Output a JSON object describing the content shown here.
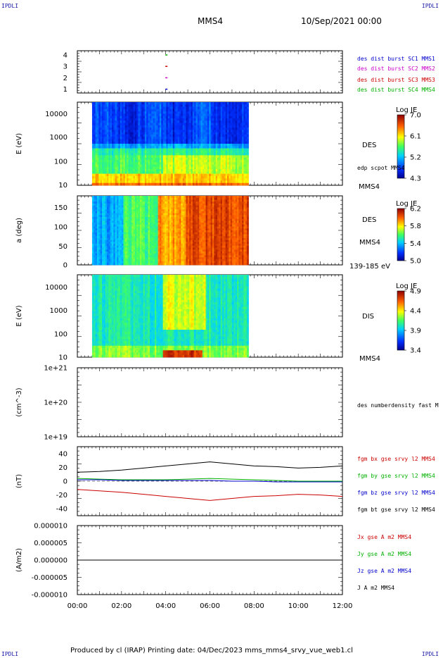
{
  "header": {
    "corner_left_top": "IPDLI",
    "corner_right_top": "IPDLI",
    "corner_left_bottom": "IPDLI",
    "corner_right_bottom": "IPDLI",
    "spacecraft": "MMS4",
    "date_time": "10/Sep/2021 00:00"
  },
  "footer": {
    "text": "Produced by cl (IRAP)   Printing date: 04/Dec/2023   mms_mms4_srvy_vue_web1.cl"
  },
  "colors": {
    "black": "#000000",
    "red": "#cc0000",
    "green": "#00b000",
    "blue": "#0000cc",
    "magenta": "#cc00cc"
  },
  "chart_data": [
    {
      "type": "scatter",
      "panel": "burst",
      "y_ticks": [
        "4",
        "3",
        "2",
        "1"
      ],
      "series": [
        {
          "name": "des dist burst SC1 MMS1",
          "color": "#0000cc",
          "x": "03:59",
          "y": 1
        },
        {
          "name": "des dist burst SC2 MMS2",
          "color": "#cc00cc",
          "x": "03:59",
          "y": 2
        },
        {
          "name": "des dist burst SC3 MMS3",
          "color": "#cc0000",
          "x": "03:59",
          "y": 3
        },
        {
          "name": "des dist burst SC4 MMS4",
          "color": "#00b000",
          "x": "03:59",
          "y": 4
        }
      ]
    },
    {
      "type": "heatmap",
      "panel": "des_energy",
      "ylabel": "E (eV)",
      "y_scale": "log",
      "y_ticks": [
        "10000",
        "1000",
        "100",
        "10"
      ],
      "right_labels": [
        "DES",
        "edp scpot MMS4",
        "MMS4"
      ],
      "colorbar": {
        "title": "Log JE",
        "ticks": [
          "7.0",
          "6.1",
          "5.2",
          "4.3"
        ]
      },
      "data_span": [
        "00:40",
        "07:45"
      ]
    },
    {
      "type": "heatmap",
      "panel": "des_pitch",
      "ylabel": "a (deg)",
      "y_ticks": [
        "150",
        "100",
        "50",
        "0"
      ],
      "right_labels": [
        "DES",
        "MMS4",
        "139-185 eV"
      ],
      "colorbar": {
        "title": "Log JE",
        "ticks": [
          "6.2",
          "5.8",
          "5.4",
          "5.0"
        ]
      },
      "data_span": [
        "00:40",
        "07:45"
      ]
    },
    {
      "type": "heatmap",
      "panel": "dis_energy",
      "ylabel": "E (eV)",
      "y_scale": "log",
      "y_ticks": [
        "10000",
        "1000",
        "100",
        "10"
      ],
      "right_labels": [
        "DIS",
        "MMS4"
      ],
      "colorbar": {
        "title": "Log JE",
        "ticks": [
          "4.9",
          "4.4",
          "3.9",
          "3.4"
        ]
      },
      "data_span": [
        "00:40",
        "07:45"
      ]
    },
    {
      "type": "line",
      "panel": "density",
      "ylabel": "(cm^-3)",
      "y_scale": "log",
      "y_ticks": [
        "1e+21",
        "1e+20",
        "1e+19"
      ],
      "series": [
        {
          "name": "des numberdensity fast M",
          "color": "#000000",
          "values": []
        }
      ]
    },
    {
      "type": "line",
      "panel": "fgm",
      "ylabel": "(nT)",
      "y_ticks": [
        "40",
        "20",
        "0",
        "-20",
        "-40"
      ],
      "ylim": [
        -50,
        50
      ],
      "x": [
        "00:00",
        "01:00",
        "02:00",
        "03:00",
        "04:00",
        "05:00",
        "06:00",
        "07:00",
        "08:00",
        "09:00",
        "10:00",
        "11:00",
        "12:00"
      ],
      "series": [
        {
          "name": "fgm bx gse srvy l2 MMS4",
          "color": "#cc0000",
          "values": [
            -12,
            -14,
            -16,
            -19,
            -22,
            -25,
            -28,
            -25,
            -22,
            -21,
            -19,
            -20,
            -22
          ]
        },
        {
          "name": "fgm by gse srvy l2 MMS4",
          "color": "#00b000",
          "values": [
            4,
            3,
            2,
            2,
            2,
            3,
            4,
            3,
            2,
            1,
            0,
            0,
            0
          ]
        },
        {
          "name": "fgm bz gse srvy l2 MMS4",
          "color": "#0000cc",
          "values": [
            2,
            2,
            1,
            1,
            1,
            1,
            1,
            0,
            0,
            -1,
            -1,
            -1,
            -1
          ]
        },
        {
          "name": "fgm bt gse srvy l2 MMS4",
          "color": "#000000",
          "values": [
            13,
            14,
            16,
            19,
            22,
            25,
            28,
            25,
            22,
            21,
            19,
            20,
            22
          ]
        }
      ]
    },
    {
      "type": "line",
      "panel": "current",
      "ylabel": "(A/m2)",
      "y_ticks": [
        "0.000010",
        "0.000005",
        "0.000000",
        "-0.000005",
        "-0.000010"
      ],
      "ylim": [
        -1e-05,
        1e-05
      ],
      "series": [
        {
          "name": "Jx gse A m2 MMS4",
          "color": "#cc0000",
          "values": []
        },
        {
          "name": "Jy gse A m2 MMS4",
          "color": "#00b000",
          "values": []
        },
        {
          "name": "Jz gse A m2 MMS4",
          "color": "#0000cc",
          "values": []
        },
        {
          "name": "J A m2 MMS4",
          "color": "#000000",
          "values": [
            0,
            0,
            0,
            0,
            0,
            0,
            0,
            0,
            0,
            0,
            0,
            0,
            0
          ]
        }
      ]
    }
  ],
  "x_axis": {
    "ticks": [
      "00:00",
      "02:00",
      "04:00",
      "06:00",
      "08:00",
      "10:00",
      "12:00"
    ]
  }
}
